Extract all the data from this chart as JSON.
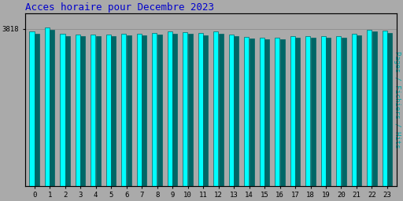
{
  "title": "Acces horaire pour Decembre 2023",
  "title_color": "#0000cc",
  "ylabel": "Pages / Fichiers / Hits",
  "ylabel_color": "#00aaaa",
  "xlabel_labels": [
    "0",
    "1",
    "2",
    "3",
    "4",
    "5",
    "6",
    "7",
    "8",
    "9",
    "10",
    "11",
    "12",
    "13",
    "14",
    "15",
    "16",
    "17",
    "18",
    "19",
    "20",
    "21",
    "22",
    "23"
  ],
  "background_color": "#aaaaaa",
  "plot_bg_color": "#aaaaaa",
  "bar_color_hits": "#00ffff",
  "bar_color_fichiers": "#0000cc",
  "bar_color_pages": "#006666",
  "bar_edge_color": "#006666",
  "ylim_min": 0,
  "ylim_max": 4200,
  "y_tick_val": 3818,
  "y_tick_label": "3818",
  "hits": [
    3750,
    3850,
    3700,
    3680,
    3680,
    3680,
    3700,
    3710,
    3720,
    3750,
    3740,
    3720,
    3750,
    3680,
    3620,
    3610,
    3610,
    3640,
    3640,
    3640,
    3650,
    3700,
    3800,
    3770
  ],
  "fichiers": [
    3700,
    3800,
    3650,
    3640,
    3640,
    3640,
    3660,
    3670,
    3680,
    3700,
    3700,
    3670,
    3700,
    3640,
    3580,
    3570,
    3570,
    3600,
    3600,
    3600,
    3610,
    3660,
    3760,
    3730
  ],
  "pages": [
    3650,
    3818,
    3600,
    3590,
    3590,
    3590,
    3610,
    3620,
    3630,
    3650,
    3650,
    3620,
    3650,
    3590,
    3540,
    3530,
    3530,
    3550,
    3550,
    3550,
    3560,
    3610,
    3710,
    3680
  ]
}
